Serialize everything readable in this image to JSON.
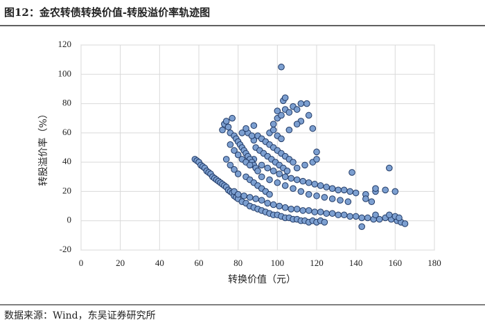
{
  "chart_data": {
    "type": "scatter",
    "title": "图12：金农转债转换价值-转股溢价率轨迹图",
    "x_label": "转换价值（元）",
    "y_label": "转股溢价率（%）",
    "source": "数据来源：Wind，东吴证券研究所",
    "color": "#7c9fd0",
    "edge_color": "#1f3864",
    "grid": true,
    "xlim": [
      0,
      180
    ],
    "ylim": [
      -20,
      120
    ],
    "xticks": [
      0,
      20,
      40,
      60,
      80,
      100,
      120,
      140,
      160,
      180
    ],
    "yticks": [
      -20,
      0,
      20,
      40,
      60,
      80,
      100,
      120
    ],
    "x": [
      58,
      59,
      60,
      61,
      62,
      63,
      64,
      65,
      66,
      67,
      68,
      69,
      70,
      71,
      72,
      73,
      74,
      75,
      76,
      77,
      78,
      79,
      80,
      82,
      84,
      86,
      88,
      90,
      92,
      94,
      96,
      98,
      100,
      102,
      104,
      106,
      108,
      110,
      112,
      114,
      116,
      118,
      120,
      122,
      124,
      78,
      80,
      83,
      86,
      89,
      92,
      95,
      98,
      101,
      104,
      107,
      110,
      113,
      116,
      119,
      122,
      125,
      128,
      131,
      134,
      137,
      140,
      143,
      146,
      149,
      152,
      155,
      158,
      161,
      163,
      165,
      143,
      150,
      157,
      160,
      162,
      88,
      92,
      95,
      98,
      101,
      104,
      107,
      110,
      113,
      116,
      119,
      122,
      125,
      128,
      131,
      134,
      137,
      140,
      145,
      150,
      155,
      157,
      160,
      138,
      145,
      148,
      150,
      92,
      96,
      100,
      104,
      108,
      112,
      116,
      120,
      124,
      128,
      132,
      136,
      72,
      73,
      74,
      75,
      76,
      77,
      78,
      79,
      80,
      81,
      82,
      83,
      84,
      85,
      86,
      87,
      88,
      89,
      90,
      76,
      78,
      80,
      82,
      84,
      86,
      88,
      90,
      92,
      94,
      96,
      98,
      100,
      102,
      104,
      106,
      108,
      74,
      76,
      78,
      80,
      84,
      86,
      88,
      90,
      92,
      94,
      96,
      85,
      87,
      89,
      91,
      93,
      95,
      97,
      99,
      101,
      103,
      105,
      110,
      114,
      118,
      120,
      120,
      96,
      98,
      100,
      102,
      82,
      84,
      88,
      98,
      100,
      102,
      104,
      106,
      108,
      110,
      112,
      115,
      116,
      118,
      100,
      103,
      104,
      102,
      112,
      106,
      110
    ],
    "values": [
      42,
      41,
      40,
      38,
      37,
      36,
      34,
      33,
      32,
      30,
      29,
      28,
      27,
      26,
      25,
      24,
      23,
      21,
      20,
      19,
      17,
      16,
      15,
      13,
      12,
      10,
      9,
      8,
      7,
      6,
      5,
      4,
      4,
      3,
      2,
      2,
      1,
      1,
      0,
      0,
      -1,
      0,
      -1,
      0,
      -1,
      20,
      18,
      17,
      16,
      15,
      14,
      12,
      11,
      10,
      9,
      8,
      8,
      7,
      7,
      6,
      6,
      5,
      5,
      4,
      4,
      3,
      3,
      2,
      2,
      1,
      1,
      2,
      1,
      0,
      -1,
      -2,
      -4,
      4,
      4,
      3,
      2,
      42,
      38,
      36,
      34,
      32,
      30,
      29,
      28,
      27,
      26,
      25,
      24,
      23,
      22,
      21,
      21,
      20,
      19,
      18,
      20,
      21,
      36,
      20,
      33,
      15,
      13,
      22,
      30,
      28,
      26,
      24,
      22,
      20,
      18,
      17,
      16,
      15,
      14,
      13,
      62,
      66,
      68,
      64,
      60,
      70,
      58,
      56,
      54,
      52,
      50,
      48,
      46,
      44,
      42,
      40,
      38,
      36,
      34,
      52,
      48,
      45,
      42,
      40,
      38,
      55,
      58,
      56,
      54,
      52,
      50,
      48,
      46,
      44,
      42,
      40,
      42,
      38,
      35,
      32,
      30,
      28,
      26,
      24,
      22,
      20,
      18,
      60,
      58,
      50,
      48,
      46,
      44,
      42,
      40,
      38,
      36,
      34,
      36,
      38,
      40,
      47,
      42,
      60,
      62,
      58,
      56,
      60,
      63,
      65,
      66,
      70,
      72,
      76,
      74,
      78,
      76,
      80,
      80,
      72,
      63,
      75,
      82,
      84,
      105,
      68,
      62,
      66
    ]
  }
}
